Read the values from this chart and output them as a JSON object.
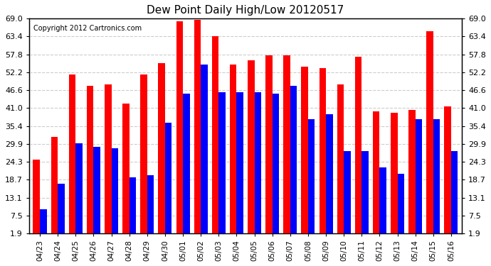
{
  "title": "Dew Point Daily High/Low 20120517",
  "copyright": "Copyright 2012 Cartronics.com",
  "dates": [
    "04/23",
    "04/24",
    "04/25",
    "04/26",
    "04/27",
    "04/28",
    "04/29",
    "04/30",
    "05/01",
    "05/02",
    "05/03",
    "05/04",
    "05/05",
    "05/06",
    "05/07",
    "05/08",
    "05/09",
    "05/10",
    "05/11",
    "05/12",
    "05/13",
    "05/14",
    "05/15",
    "05/16"
  ],
  "high": [
    25.0,
    32.0,
    51.5,
    48.0,
    48.5,
    42.5,
    51.5,
    55.0,
    68.0,
    68.5,
    63.5,
    54.5,
    56.0,
    57.5,
    57.5,
    54.0,
    53.5,
    48.5,
    57.0,
    40.0,
    39.5,
    40.5,
    65.0,
    41.5
  ],
  "low": [
    9.5,
    17.5,
    30.0,
    29.0,
    28.5,
    19.5,
    20.0,
    36.5,
    45.5,
    54.5,
    46.0,
    46.0,
    46.0,
    45.5,
    48.0,
    37.5,
    39.0,
    27.5,
    27.5,
    22.5,
    20.5,
    37.5,
    37.5,
    27.5
  ],
  "bg_color": "#ffffff",
  "grid_color": "#cccccc",
  "bar_high_color": "#ff0000",
  "bar_low_color": "#0000ff",
  "yticks": [
    1.9,
    7.5,
    13.1,
    18.7,
    24.3,
    29.9,
    35.4,
    41.0,
    46.6,
    52.2,
    57.8,
    63.4,
    69.0
  ],
  "ymin": 1.9,
  "ymax": 69.0,
  "bar_width": 0.38
}
